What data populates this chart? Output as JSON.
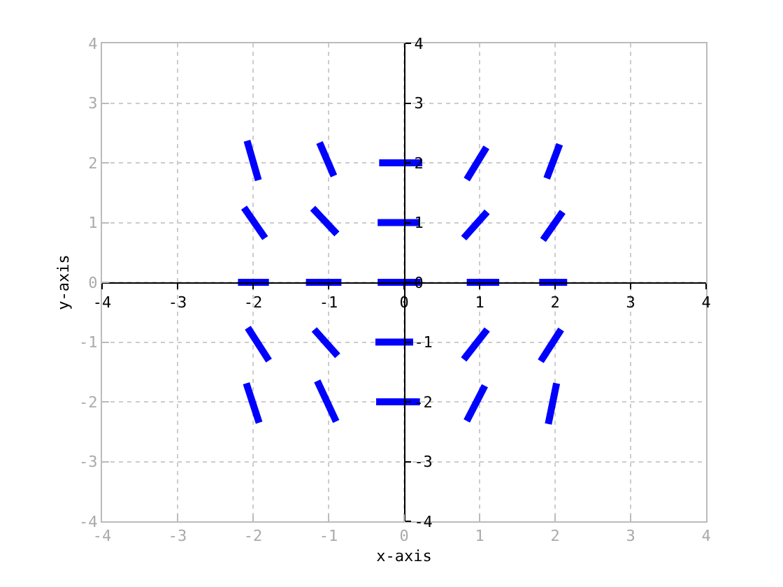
{
  "chart_data": {
    "type": "line",
    "xlabel": "x-axis",
    "ylabel": "y-axis",
    "marker": "none",
    "grid": true,
    "xlim": [
      -4,
      4
    ],
    "xticks": [
      -4,
      -3,
      -2,
      -1,
      0,
      1,
      2,
      3,
      4
    ],
    "ylim": [
      -4,
      4
    ],
    "yticks": [
      -4,
      -3,
      -2,
      -1,
      0,
      1,
      2,
      3,
      4
    ],
    "x2lim": [
      -4,
      4
    ],
    "x2ticks": [
      -4,
      -3,
      -2,
      -1,
      0,
      1,
      2,
      3,
      4
    ],
    "y2lim": [
      -4,
      4
    ],
    "y2ticks": [
      -4,
      -3,
      -2,
      -1,
      0,
      1,
      2,
      3,
      4
    ],
    "series": [
      {
        "color": "#0000ff",
        "x": [
          -2.08,
          -1.93
        ],
        "values": [
          2.37,
          1.71
        ]
      },
      {
        "color": "#0000ff",
        "x": [
          -1.12,
          -0.93
        ],
        "values": [
          2.34,
          1.78
        ]
      },
      {
        "color": "#0000ff",
        "x": [
          -0.33,
          0.24
        ],
        "values": [
          2,
          2
        ]
      },
      {
        "color": "#0000ff",
        "x": [
          0.83,
          1.09
        ],
        "values": [
          1.72,
          2.26
        ]
      },
      {
        "color": "#0000ff",
        "x": [
          1.89,
          2.06
        ],
        "values": [
          1.74,
          2.31
        ]
      },
      {
        "color": "#0000ff",
        "x": [
          -2.12,
          -1.84
        ],
        "values": [
          1.25,
          0.74
        ]
      },
      {
        "color": "#0000ff",
        "x": [
          -1.21,
          -0.89
        ],
        "values": [
          1.24,
          0.81
        ]
      },
      {
        "color": "#0000ff",
        "x": [
          -0.35,
          0.21
        ],
        "values": [
          1,
          1
        ]
      },
      {
        "color": "#0000ff",
        "x": [
          0.79,
          1.1
        ],
        "values": [
          0.74,
          1.18
        ]
      },
      {
        "color": "#0000ff",
        "x": [
          1.84,
          2.1
        ],
        "values": [
          0.71,
          1.18
        ]
      },
      {
        "color": "#0000ff",
        "x": [
          -2.2,
          -1.79
        ],
        "values": [
          0,
          0
        ]
      },
      {
        "color": "#0000ff",
        "x": [
          -1.3,
          -0.83
        ],
        "values": [
          0,
          0
        ]
      },
      {
        "color": "#0000ff",
        "x": [
          -0.35,
          0.22
        ],
        "values": [
          0,
          0
        ]
      },
      {
        "color": "#0000ff",
        "x": [
          0.83,
          1.26
        ],
        "values": [
          0,
          0
        ]
      },
      {
        "color": "#0000ff",
        "x": [
          1.79,
          2.16
        ],
        "values": [
          0,
          0
        ]
      },
      {
        "color": "#0000ff",
        "x": [
          -2.07,
          -1.79
        ],
        "values": [
          -0.76,
          -1.31
        ]
      },
      {
        "color": "#0000ff",
        "x": [
          -1.19,
          -0.88
        ],
        "values": [
          -0.79,
          -1.23
        ]
      },
      {
        "color": "#0000ff",
        "x": [
          -0.38,
          0.12
        ],
        "values": [
          -1,
          -1
        ]
      },
      {
        "color": "#0000ff",
        "x": [
          0.79,
          1.1
        ],
        "values": [
          -1.29,
          -0.79
        ]
      },
      {
        "color": "#0000ff",
        "x": [
          1.81,
          2.08
        ],
        "values": [
          -1.32,
          -0.79
        ]
      },
      {
        "color": "#0000ff",
        "x": [
          -2.09,
          -1.92
        ],
        "values": [
          -1.69,
          -2.35
        ]
      },
      {
        "color": "#0000ff",
        "x": [
          -1.15,
          -0.9
        ],
        "values": [
          -1.65,
          -2.33
        ]
      },
      {
        "color": "#0000ff",
        "x": [
          -0.37,
          0.21
        ],
        "values": [
          -2,
          -2
        ]
      },
      {
        "color": "#0000ff",
        "x": [
          0.83,
          1.07
        ],
        "values": [
          -2.32,
          -1.73
        ]
      },
      {
        "color": "#0000ff",
        "x": [
          1.91,
          2.02
        ],
        "values": [
          -2.37,
          -1.69
        ]
      }
    ]
  }
}
